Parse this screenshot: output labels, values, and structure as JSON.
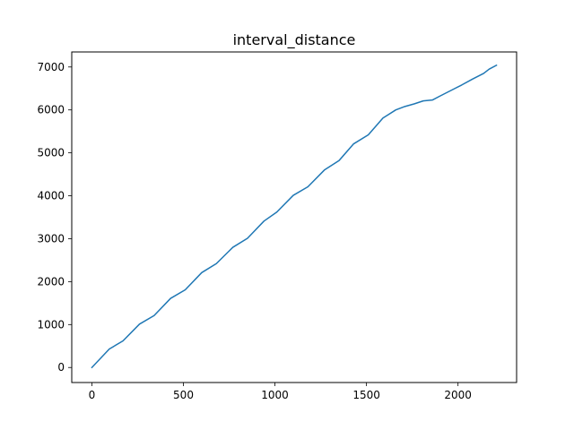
{
  "chart_data": {
    "type": "line",
    "title": "interval_distance",
    "xlabel": "",
    "ylabel": "",
    "xlim": [
      -110,
      2320
    ],
    "ylim": [
      -350,
      7350
    ],
    "grid": false,
    "xticks": [
      0,
      500,
      1000,
      1500,
      2000
    ],
    "yticks": [
      0,
      1000,
      2000,
      3000,
      4000,
      5000,
      6000,
      7000
    ],
    "series_color": "#1f77b4",
    "series": [
      {
        "x": [
          0,
          95,
          170,
          260,
          340,
          430,
          510,
          600,
          680,
          770,
          850,
          940,
          1010,
          1100,
          1180,
          1270,
          1350,
          1430,
          1510,
          1590,
          1660,
          1710,
          1760,
          1810,
          1860,
          1900,
          1960,
          2020,
          2080,
          2140,
          2170,
          2210
        ],
        "y": [
          0,
          430,
          620,
          1010,
          1210,
          1610,
          1810,
          2210,
          2420,
          2800,
          3010,
          3410,
          3620,
          4010,
          4210,
          4600,
          4820,
          5210,
          5420,
          5810,
          6000,
          6080,
          6140,
          6210,
          6230,
          6320,
          6450,
          6580,
          6720,
          6850,
          6950,
          7040
        ]
      }
    ]
  }
}
